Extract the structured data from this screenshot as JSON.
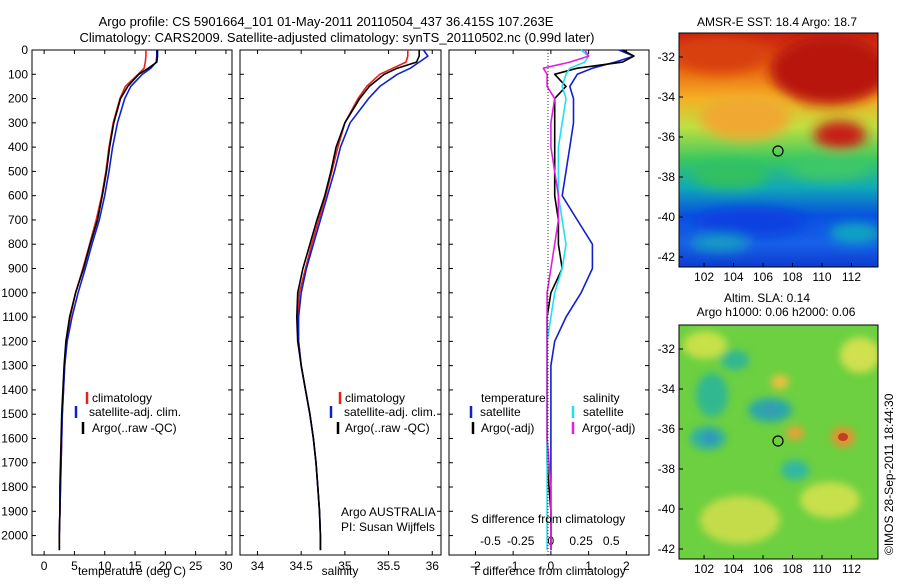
{
  "header": {
    "title_line1": "Argo profile: CS 5901664_101 01-May-2011 20110504_437 36.415S 107.263E",
    "title_line2": "Climatology: CARS2009. Satellite-adjusted climatology: synTS_20110502.nc (0.99d later)"
  },
  "colors": {
    "climatology": "#e8201a",
    "satellite": "#1020d0",
    "argo": "#000000",
    "satellite_salinity": "#20e0f0",
    "argo_salinity": "#e020e0"
  },
  "legend": {
    "climatology": "climatology",
    "satellite_adj_clim": "satellite-adj. clim.",
    "argo_raw_qc": "Argo(..raw -QC)",
    "temperature_header": "temperature",
    "salinity_header": "salinity",
    "satellite": "satellite",
    "argo_adj": "Argo(-adj)"
  },
  "annotations": {
    "argo_australia": "Argo AUSTRALIA",
    "pi": "PI: Susan Wijffels",
    "s_diff_title": "S difference from climatology",
    "sst_title": "AMSR-E SST: 18.4 Argo: 18.7",
    "sla_title_1": "Altim. SLA: 0.14",
    "sla_title_2": "Argo h1000: 0.06 h2000: 0.06",
    "credit": "©IMOS 28-Sep-2011 18:44:30"
  },
  "chart_data": [
    {
      "type": "line",
      "panel": "temperature",
      "xlabel": "temperature (deg C)",
      "ylabel": "",
      "xlim": [
        -2,
        31
      ],
      "ylim": [
        2080,
        0
      ],
      "xticks": [
        0,
        5,
        10,
        15,
        20,
        25,
        30
      ],
      "yticks": [
        0,
        100,
        200,
        300,
        400,
        500,
        600,
        700,
        800,
        900,
        1000,
        1100,
        1200,
        1300,
        1400,
        1500,
        1600,
        1700,
        1800,
        1900,
        2000
      ],
      "series": [
        {
          "name": "climatology",
          "color_key": "climatology",
          "depth": [
            0,
            25,
            50,
            75,
            100,
            150,
            200,
            300,
            400,
            500,
            600,
            700,
            800,
            900,
            1000,
            1100,
            1200,
            1300,
            1400,
            1500,
            1600,
            1700,
            1800,
            1900,
            2000,
            2060
          ],
          "values": [
            16.8,
            16.8,
            16.7,
            16.5,
            15.5,
            13.4,
            12.5,
            11.4,
            10.7,
            10.2,
            9.5,
            8.6,
            7.5,
            6.4,
            5.2,
            4.3,
            3.7,
            3.4,
            3.2,
            3.0,
            2.9,
            2.8,
            2.7,
            2.6,
            2.5,
            2.5
          ]
        },
        {
          "name": "satellite-adj. clim.",
          "color_key": "satellite",
          "depth": [
            0,
            25,
            50,
            75,
            100,
            150,
            200,
            300,
            400,
            500,
            600,
            700,
            800,
            900,
            1000,
            1100,
            1200,
            1300,
            1400,
            1500,
            1600,
            1700,
            1800,
            1900,
            2000,
            2060
          ],
          "values": [
            18.6,
            18.6,
            18.5,
            17.6,
            16.2,
            14.3,
            13.3,
            12.1,
            11.3,
            10.7,
            10.0,
            9.1,
            7.9,
            6.8,
            5.6,
            4.6,
            3.8,
            3.4,
            3.2,
            3.0,
            2.9,
            2.8,
            2.7,
            2.6,
            2.5,
            2.5
          ]
        },
        {
          "name": "Argo(..raw -QC)",
          "color_key": "argo",
          "depth": [
            0,
            25,
            50,
            75,
            100,
            150,
            200,
            300,
            400,
            500,
            600,
            700,
            800,
            900,
            1000,
            1100,
            1200,
            1300,
            1400,
            1500,
            1600,
            1700,
            1800,
            1900,
            2000,
            2060
          ],
          "values": [
            18.7,
            18.7,
            18.6,
            17.2,
            15.6,
            13.8,
            12.6,
            11.5,
            10.8,
            10.3,
            9.6,
            8.8,
            7.6,
            6.5,
            5.2,
            4.2,
            3.6,
            3.3,
            3.1,
            2.9,
            2.8,
            2.7,
            2.6,
            2.6,
            2.5,
            2.5
          ]
        }
      ]
    },
    {
      "type": "line",
      "panel": "salinity",
      "xlabel": "salinity",
      "ylabel": "",
      "xlim": [
        33.8,
        36.1
      ],
      "ylim": [
        2080,
        0
      ],
      "xticks": [
        34,
        34.5,
        35,
        35.5,
        36
      ],
      "series": [
        {
          "name": "climatology",
          "color_key": "climatology",
          "depth": [
            0,
            25,
            50,
            75,
            100,
            150,
            200,
            300,
            400,
            500,
            600,
            700,
            800,
            900,
            1000,
            1100,
            1200,
            1300,
            1400,
            1500,
            1600,
            1700,
            1800,
            1900,
            2000,
            2060
          ],
          "values": [
            35.72,
            35.72,
            35.7,
            35.55,
            35.4,
            35.25,
            35.15,
            35.0,
            34.92,
            34.85,
            34.78,
            34.7,
            34.62,
            34.55,
            34.48,
            34.46,
            34.47,
            34.5,
            34.55,
            34.6,
            34.64,
            34.67,
            34.69,
            34.71,
            34.72,
            34.72
          ]
        },
        {
          "name": "satellite-adj. clim.",
          "color_key": "satellite",
          "depth": [
            0,
            25,
            50,
            75,
            100,
            150,
            200,
            300,
            400,
            500,
            600,
            700,
            800,
            900,
            1000,
            1100,
            1200,
            1300,
            1400,
            1500,
            1600,
            1700,
            1800,
            1900,
            2000,
            2060
          ],
          "values": [
            35.9,
            35.95,
            35.85,
            35.75,
            35.6,
            35.4,
            35.27,
            35.06,
            34.95,
            34.88,
            34.8,
            34.72,
            34.64,
            34.56,
            34.5,
            34.47,
            34.47,
            34.5,
            34.55,
            34.6,
            34.64,
            34.67,
            34.69,
            34.71,
            34.72,
            34.72
          ]
        },
        {
          "name": "Argo(..raw -QC)",
          "color_key": "argo",
          "depth": [
            0,
            25,
            50,
            75,
            100,
            150,
            200,
            300,
            400,
            500,
            600,
            700,
            800,
            900,
            1000,
            1100,
            1200,
            1300,
            1400,
            1500,
            1600,
            1700,
            1800,
            1900,
            2000,
            2060
          ],
          "values": [
            35.85,
            35.85,
            35.82,
            35.6,
            35.45,
            35.28,
            35.17,
            35.0,
            34.9,
            34.84,
            34.77,
            34.68,
            34.6,
            34.52,
            34.46,
            34.45,
            34.46,
            34.5,
            34.55,
            34.6,
            34.64,
            34.67,
            34.69,
            34.71,
            34.72,
            34.72
          ]
        }
      ]
    },
    {
      "type": "line",
      "panel": "difference",
      "xlabel": "T difference from climatology",
      "ylabel": "",
      "xlim": [
        -2.7,
        2.6
      ],
      "ylim": [
        2080,
        0
      ],
      "xticks": [
        -2,
        -1,
        0,
        1,
        2
      ],
      "top_axis_label": "S difference from climatology",
      "top_ticks": [
        "-0.5",
        "-0.25",
        "0",
        "0.25",
        "0.5"
      ],
      "top_tick_values": [
        -1.6,
        -0.8,
        0,
        0.8,
        1.6
      ],
      "series": [
        {
          "name": "temperature satellite",
          "color_key": "satellite",
          "depth": [
            0,
            25,
            50,
            75,
            100,
            150,
            200,
            300,
            400,
            500,
            600,
            700,
            800,
            900,
            1000,
            1100,
            1200,
            1300,
            1400,
            1500,
            1600,
            1700,
            1800,
            1900,
            2000,
            2060
          ],
          "values": [
            1.8,
            2.2,
            1.7,
            1.1,
            0.7,
            0.5,
            0.6,
            0.6,
            0.5,
            0.4,
            0.3,
            0.7,
            1.1,
            1.1,
            0.8,
            0.4,
            0.1,
            0.0,
            0.0,
            0.0,
            0.0,
            0.0,
            0.0,
            0.0,
            0.0,
            0.0
          ]
        },
        {
          "name": "temperature Argo(-adj)",
          "color_key": "argo",
          "depth": [
            0,
            25,
            50,
            75,
            100,
            150,
            200,
            300,
            400,
            500,
            600,
            700,
            800,
            900,
            1000,
            1100,
            1200,
            1300,
            1400,
            1500,
            1600,
            1700,
            1800,
            1900,
            2000,
            2060
          ],
          "values": [
            1.9,
            2.2,
            1.9,
            0.7,
            0.1,
            0.4,
            0.1,
            0.1,
            0.1,
            0.1,
            0.1,
            0.2,
            0.2,
            0.3,
            0.0,
            -0.1,
            -0.1,
            -0.1,
            -0.1,
            -0.1,
            -0.1,
            -0.1,
            -0.05,
            0.0,
            0.0,
            0.0
          ]
        },
        {
          "name": "salinity satellite",
          "color_key": "satellite_salinity",
          "depth": [
            0,
            25,
            50,
            75,
            100,
            150,
            200,
            300,
            400,
            500,
            600,
            700,
            800,
            900,
            1000,
            1100,
            1200,
            1300,
            1400,
            1500,
            1600,
            1700,
            1800,
            1900,
            2000,
            2060
          ],
          "values": [
            0.8,
            1.0,
            0.9,
            0.5,
            0.4,
            0.3,
            0.4,
            0.3,
            0.2,
            0.2,
            0.2,
            0.3,
            0.4,
            0.3,
            0.1,
            0.0,
            -0.1,
            -0.1,
            -0.1,
            -0.1,
            -0.1,
            -0.1,
            -0.1,
            -0.1,
            -0.1,
            -0.1
          ]
        },
        {
          "name": "salinity Argo(-adj)",
          "color_key": "argo_salinity",
          "depth": [
            0,
            25,
            50,
            75,
            100,
            150,
            200,
            300,
            400,
            500,
            600,
            700,
            800,
            900,
            1000,
            1100,
            1200,
            1300,
            1400,
            1500,
            1600,
            1700,
            1800,
            1900,
            2000,
            2060
          ],
          "values": [
            0.9,
            1.0,
            0.5,
            -0.2,
            -0.1,
            -0.1,
            0.1,
            0.0,
            0.0,
            0.1,
            0.2,
            0.2,
            0.1,
            0.0,
            -0.1,
            -0.1,
            -0.1,
            -0.1,
            -0.1,
            -0.1,
            -0.1,
            -0.05,
            0.0,
            0.0,
            0.0,
            0.0
          ]
        }
      ]
    },
    {
      "type": "heatmap",
      "panel": "sst_map",
      "title": "AMSR-E SST: 18.4 Argo: 18.7",
      "xticks": [
        "102",
        "104",
        "106",
        "108",
        "110",
        "112"
      ],
      "yticks": [
        "-32",
        "-34",
        "-36",
        "-38",
        "-40",
        "-42"
      ],
      "xlim": [
        100.3,
        113.8
      ],
      "ylim": [
        -30.8,
        -42.5
      ],
      "argo_marker": {
        "lon": 107.263,
        "lat": -36.415
      }
    },
    {
      "type": "heatmap",
      "panel": "sla_map",
      "title": "Altim. SLA: 0.14 / Argo h1000: 0.06 h2000: 0.06",
      "xticks": [
        "102",
        "104",
        "106",
        "108",
        "110",
        "112"
      ],
      "yticks": [
        "-32",
        "-34",
        "-36",
        "-38",
        "-40",
        "-42"
      ],
      "xlim": [
        100.3,
        113.8
      ],
      "ylim": [
        -30.8,
        -42.5
      ],
      "argo_marker": {
        "lon": 107.263,
        "lat": -36.415
      }
    }
  ]
}
